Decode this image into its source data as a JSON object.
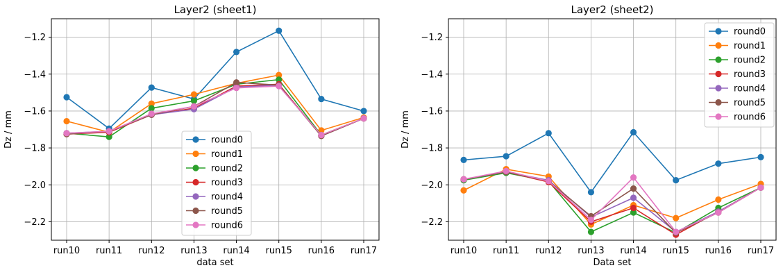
{
  "chart_data": [
    {
      "type": "line",
      "title": "Layer2 (sheet1)",
      "xlabel": "data set",
      "ylabel": "Dz / mm",
      "categories": [
        "run10",
        "run11",
        "run12",
        "run13",
        "run14",
        "run15",
        "run16",
        "run17"
      ],
      "ylim": [
        -2.3,
        -1.1
      ],
      "yticks": [
        -2.2,
        -2.0,
        -1.8,
        -1.6,
        -1.4,
        -1.2
      ],
      "ytick_labels": [
        "−2.2",
        "−2.0",
        "−1.8",
        "−1.6",
        "−1.4",
        "−1.2"
      ],
      "grid": true,
      "legend_position": "lower-center",
      "series": [
        {
          "name": "round0",
          "color": "#1f77b4",
          "values": [
            -1.525,
            -1.695,
            -1.473,
            -1.535,
            -1.28,
            -1.165,
            -1.535,
            -1.6
          ]
        },
        {
          "name": "round1",
          "color": "#ff7f0e",
          "values": [
            -1.655,
            -1.715,
            -1.56,
            -1.51,
            -1.45,
            -1.405,
            -1.705,
            -1.635
          ]
        },
        {
          "name": "round2",
          "color": "#2ca02c",
          "values": [
            -1.72,
            -1.74,
            -1.585,
            -1.545,
            -1.455,
            -1.43,
            -1.73,
            -1.64
          ]
        },
        {
          "name": "round3",
          "color": "#d62728",
          "values": [
            -1.725,
            -1.715,
            -1.62,
            -1.585,
            -1.465,
            -1.455,
            -1.735,
            -1.64
          ]
        },
        {
          "name": "round4",
          "color": "#9467bd",
          "values": [
            -1.72,
            -1.71,
            -1.62,
            -1.59,
            -1.47,
            -1.46,
            -1.735,
            -1.64
          ]
        },
        {
          "name": "round5",
          "color": "#8c564b",
          "values": [
            -1.725,
            -1.71,
            -1.62,
            -1.575,
            -1.445,
            -1.46,
            -1.735,
            -1.64
          ]
        },
        {
          "name": "round6",
          "color": "#e377c2",
          "values": [
            -1.72,
            -1.71,
            -1.615,
            -1.575,
            -1.475,
            -1.465,
            -1.73,
            -1.64
          ]
        }
      ]
    },
    {
      "type": "line",
      "title": "Layer2 (sheet2)",
      "xlabel": "Data set",
      "ylabel": "Dz / mm",
      "categories": [
        "run10",
        "run11",
        "run12",
        "run13",
        "run14",
        "run15",
        "run16",
        "run17"
      ],
      "ylim": [
        -2.3,
        -1.1
      ],
      "yticks": [
        -2.2,
        -2.0,
        -1.8,
        -1.6,
        -1.4,
        -1.2
      ],
      "ytick_labels": [
        "−2.2",
        "−2.0",
        "−1.8",
        "−1.6",
        "−1.4",
        "−1.2"
      ],
      "grid": true,
      "legend_position": "upper-right",
      "series": [
        {
          "name": "round0",
          "color": "#1f77b4",
          "values": [
            -1.865,
            -1.845,
            -1.72,
            -2.04,
            -1.715,
            -1.975,
            -1.885,
            -1.85
          ]
        },
        {
          "name": "round1",
          "color": "#ff7f0e",
          "values": [
            -2.03,
            -1.915,
            -1.955,
            -2.215,
            -2.11,
            -2.18,
            -2.08,
            -1.995
          ]
        },
        {
          "name": "round2",
          "color": "#2ca02c",
          "values": [
            -1.975,
            -1.935,
            -1.98,
            -2.255,
            -2.15,
            -2.26,
            -2.125,
            -2.015
          ]
        },
        {
          "name": "round3",
          "color": "#d62728",
          "values": [
            -1.97,
            -1.93,
            -1.985,
            -2.2,
            -2.125,
            -2.27,
            -2.145,
            -2.015
          ]
        },
        {
          "name": "round4",
          "color": "#9467bd",
          "values": [
            -1.97,
            -1.93,
            -1.975,
            -2.175,
            -2.07,
            -2.255,
            -2.145,
            -2.015
          ]
        },
        {
          "name": "round5",
          "color": "#8c564b",
          "values": [
            -1.97,
            -1.93,
            -1.98,
            -2.17,
            -2.02,
            -2.26,
            -2.15,
            -2.015
          ]
        },
        {
          "name": "round6",
          "color": "#e377c2",
          "values": [
            -1.97,
            -1.925,
            -1.98,
            -2.19,
            -1.96,
            -2.255,
            -2.15,
            -2.015
          ]
        }
      ]
    }
  ]
}
